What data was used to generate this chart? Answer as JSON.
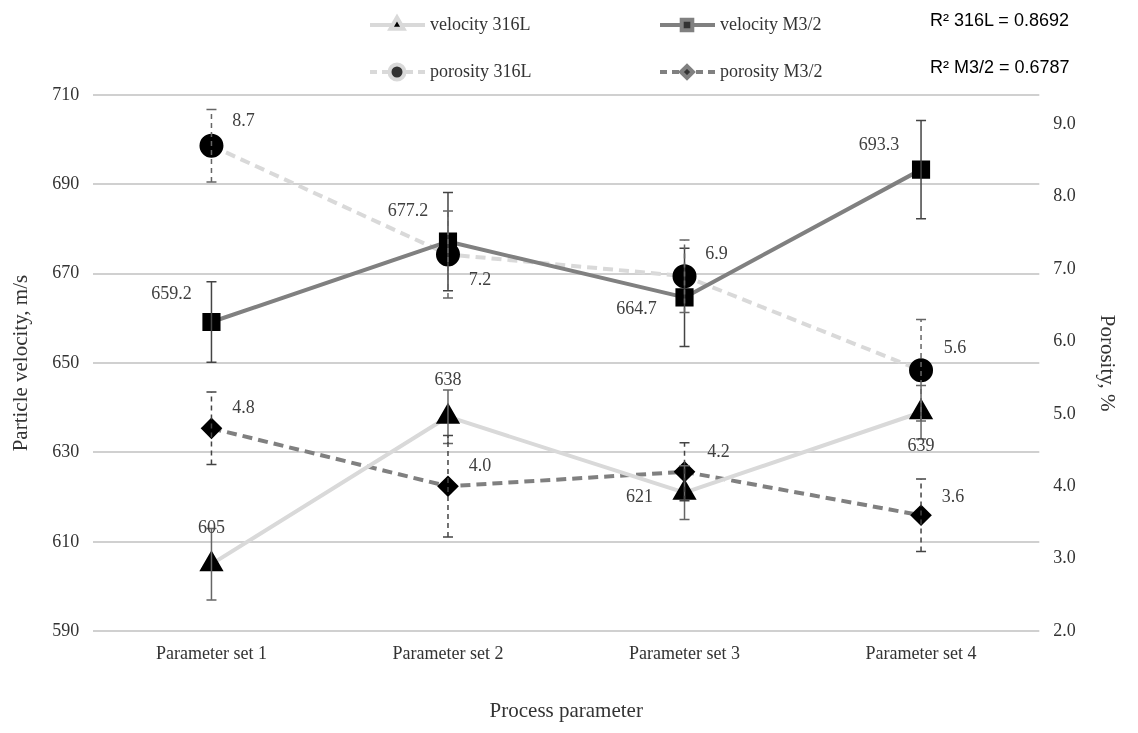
{
  "chart_data": {
    "type": "line",
    "xlabel": "Process parameter",
    "ylabel": "Particle velocity, m/s",
    "y2label": "Porosity, %",
    "categories": [
      "Parameter set 1",
      "Parameter set 2",
      "Parameter set 3",
      "Parameter set 4"
    ],
    "ylim": [
      590,
      710
    ],
    "yticks": [
      590,
      610,
      630,
      650,
      670,
      690,
      710
    ],
    "y2lim": [
      2,
      9.4
    ],
    "y2ticks": [
      {
        "value": 2,
        "label": "2.0"
      },
      {
        "value": 3,
        "label": "3.0"
      },
      {
        "value": 4,
        "label": "4.0"
      },
      {
        "value": 5,
        "label": "5.0"
      },
      {
        "value": 6,
        "label": "6.0"
      },
      {
        "value": 7,
        "label": "7.0"
      },
      {
        "value": 8,
        "label": "8.0"
      },
      {
        "value": 9,
        "label": "9.0"
      }
    ],
    "grid": "y",
    "legend": "top",
    "annotations": [
      "R² 316L = 0.8692",
      "R² M3/2 = 0.6787"
    ],
    "series": [
      {
        "name": "velocity 316L",
        "color": "#d9d9d9",
        "marker": "triangle",
        "line_style": "solid",
        "values": [
          605,
          638,
          621,
          639
        ],
        "value_labels": [
          "605",
          "638",
          "621",
          "639"
        ],
        "errors": [
          8,
          6,
          6,
          6
        ]
      },
      {
        "name": "velocity M3/2",
        "color": "#808080",
        "marker": "square",
        "line_style": "solid",
        "values": [
          659.2,
          677.2,
          664.7,
          693.3
        ],
        "value_labels": [
          "659.2",
          "677.2",
          "664.7",
          "693.3"
        ],
        "errors": [
          9,
          11,
          11,
          11
        ]
      },
      {
        "name": "porosity 316L",
        "color": "#d9d9d9",
        "marker": "circle",
        "line_style": "dashed",
        "axis": "y2",
        "values": [
          8.7,
          7.2,
          6.9,
          5.6
        ],
        "value_labels": [
          "8.7",
          "7.2",
          "6.9",
          "5.6"
        ],
        "errors": [
          0.5,
          0.6,
          0.5,
          0.7
        ]
      },
      {
        "name": "porosity M3/2",
        "color": "#808080",
        "marker": "diamond",
        "line_style": "dashed",
        "axis": "y2",
        "values": [
          4.8,
          4.0,
          4.2,
          3.6
        ],
        "value_labels": [
          "4.8",
          "4.0",
          "4.2",
          "3.6"
        ],
        "errors": [
          0.5,
          0.7,
          0.4,
          0.5
        ]
      }
    ]
  }
}
